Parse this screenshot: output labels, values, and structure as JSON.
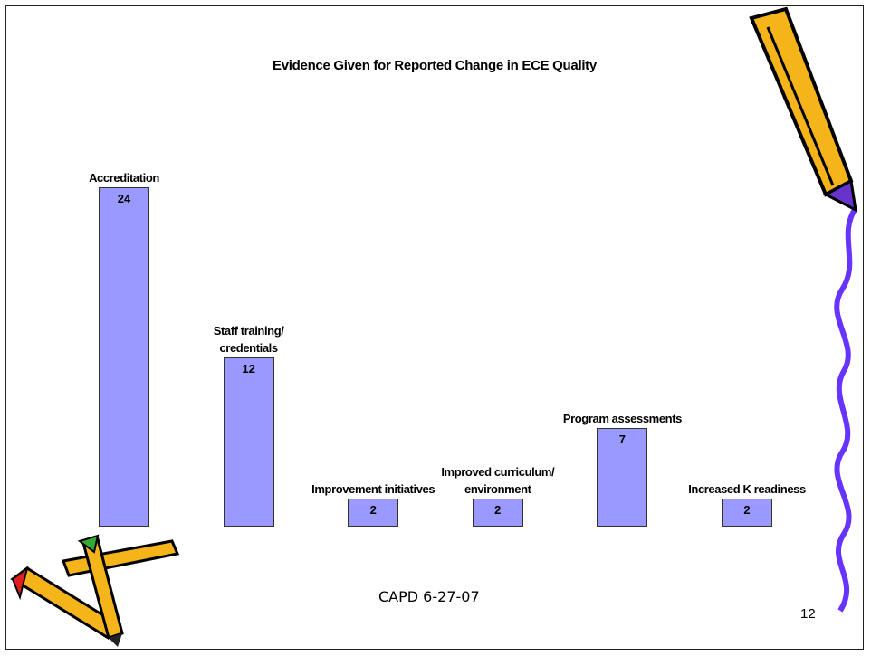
{
  "chart_data": {
    "type": "bar",
    "title": "Evidence Given for Reported Change in ECE Quality",
    "categories": [
      "Accreditation",
      "Staff training/ credentials",
      "Improvement initiatives",
      "Improved curriculum/ environment",
      "Program assessments",
      "Increased K readiness"
    ],
    "values": [
      24,
      12,
      2,
      2,
      7,
      2
    ],
    "color": "#9999ff"
  },
  "footer": "CAPD  6-27-07",
  "page_number": "12"
}
